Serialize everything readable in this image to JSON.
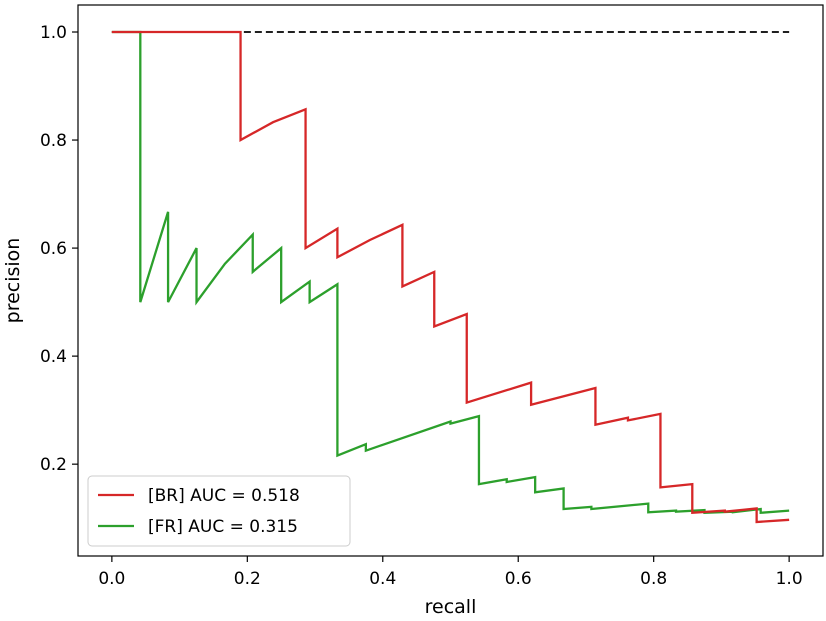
{
  "chart_data": {
    "type": "line",
    "title": "",
    "xlabel": "recall",
    "ylabel": "precision",
    "xlim": [
      -0.05,
      1.05
    ],
    "ylim": [
      0.03,
      1.05
    ],
    "x_ticks": [
      0.0,
      0.2,
      0.4,
      0.6,
      0.8,
      1.0
    ],
    "x_tick_labels": [
      "0.0",
      "0.2",
      "0.4",
      "0.6",
      "0.8",
      "1.0"
    ],
    "y_ticks": [
      0.2,
      0.4,
      0.6,
      0.8,
      1.0
    ],
    "y_tick_labels": [
      "0.2",
      "0.4",
      "0.6",
      "0.8",
      "1.0"
    ],
    "grid": false,
    "legend_position": "lower-left",
    "series": [
      {
        "name": "[BR] AUC = 0.518",
        "color": "#d62728",
        "dashed": false,
        "points": [
          [
            0.0,
            1.0
          ],
          [
            0.19,
            1.0
          ],
          [
            0.19,
            0.8
          ],
          [
            0.238,
            0.833
          ],
          [
            0.286,
            0.857
          ],
          [
            0.286,
            0.6
          ],
          [
            0.333,
            0.636
          ],
          [
            0.333,
            0.583
          ],
          [
            0.381,
            0.615
          ],
          [
            0.429,
            0.643
          ],
          [
            0.429,
            0.529
          ],
          [
            0.476,
            0.556
          ],
          [
            0.476,
            0.455
          ],
          [
            0.524,
            0.478
          ],
          [
            0.524,
            0.314
          ],
          [
            0.619,
            0.351
          ],
          [
            0.619,
            0.31
          ],
          [
            0.714,
            0.341
          ],
          [
            0.714,
            0.273
          ],
          [
            0.762,
            0.286
          ],
          [
            0.762,
            0.281
          ],
          [
            0.81,
            0.293
          ],
          [
            0.81,
            0.157
          ],
          [
            0.857,
            0.163
          ],
          [
            0.857,
            0.11
          ],
          [
            0.905,
            0.114
          ],
          [
            0.905,
            0.112
          ],
          [
            0.952,
            0.118
          ],
          [
            0.952,
            0.093
          ],
          [
            1.0,
            0.097
          ]
        ]
      },
      {
        "name": "[FR] AUC = 0.315",
        "color": "#2ca02c",
        "dashed": false,
        "points": [
          [
            0.0,
            1.0
          ],
          [
            0.042,
            1.0
          ],
          [
            0.042,
            0.5
          ],
          [
            0.083,
            0.667
          ],
          [
            0.083,
            0.5
          ],
          [
            0.125,
            0.6
          ],
          [
            0.125,
            0.5
          ],
          [
            0.167,
            0.571
          ],
          [
            0.208,
            0.625
          ],
          [
            0.208,
            0.556
          ],
          [
            0.25,
            0.6
          ],
          [
            0.25,
            0.5
          ],
          [
            0.292,
            0.538
          ],
          [
            0.292,
            0.5
          ],
          [
            0.333,
            0.533
          ],
          [
            0.333,
            0.216
          ],
          [
            0.375,
            0.237
          ],
          [
            0.375,
            0.225
          ],
          [
            0.5,
            0.279
          ],
          [
            0.5,
            0.275
          ],
          [
            0.542,
            0.289
          ],
          [
            0.542,
            0.163
          ],
          [
            0.583,
            0.172
          ],
          [
            0.583,
            0.167
          ],
          [
            0.625,
            0.176
          ],
          [
            0.625,
            0.148
          ],
          [
            0.667,
            0.155
          ],
          [
            0.667,
            0.117
          ],
          [
            0.708,
            0.121
          ],
          [
            0.708,
            0.117
          ],
          [
            0.792,
            0.127
          ],
          [
            0.792,
            0.111
          ],
          [
            0.833,
            0.114
          ],
          [
            0.833,
            0.112
          ],
          [
            0.875,
            0.115
          ],
          [
            0.875,
            0.11
          ],
          [
            0.917,
            0.112
          ],
          [
            0.917,
            0.111
          ],
          [
            0.958,
            0.117
          ],
          [
            0.958,
            0.11
          ],
          [
            1.0,
            0.114
          ]
        ]
      },
      {
        "name": "",
        "color": "#000000",
        "dashed": true,
        "points": [
          [
            0.0,
            1.0
          ],
          [
            1.0,
            1.0
          ]
        ]
      }
    ]
  }
}
